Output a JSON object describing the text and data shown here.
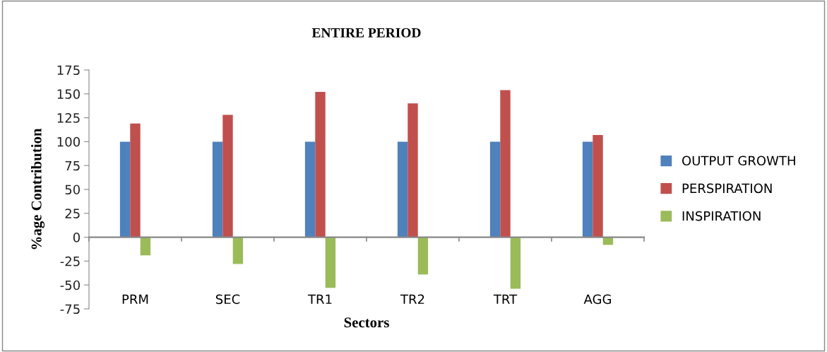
{
  "chart_data": {
    "type": "bar",
    "title": "ENTIRE PERIOD",
    "xlabel": "Sectors",
    "ylabel": "%age Contribution",
    "categories": [
      "PRM",
      "SEC",
      "TR1",
      "TR2",
      "TRT",
      "AGG"
    ],
    "series": [
      {
        "name": "OUTPUT GROWTH",
        "color": "#4f81bd",
        "values": [
          100,
          100,
          100,
          100,
          100,
          100
        ]
      },
      {
        "name": "PERSPIRATION",
        "color": "#c0504d",
        "values": [
          119,
          128,
          152,
          140,
          154,
          107
        ]
      },
      {
        "name": "INSPIRATION",
        "color": "#9bbb59",
        "values": [
          -19,
          -28,
          -53,
          -39,
          -54,
          -8
        ]
      }
    ],
    "ylim": [
      -75,
      175
    ],
    "yticks": [
      -75,
      -50,
      -25,
      0,
      25,
      50,
      75,
      100,
      125,
      150,
      175
    ],
    "legend": "right"
  }
}
